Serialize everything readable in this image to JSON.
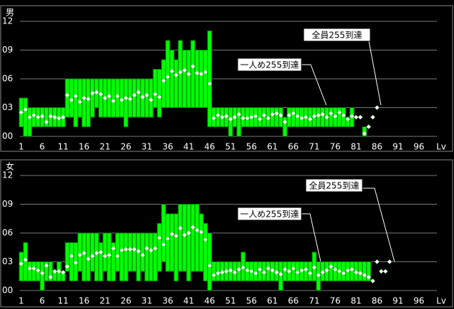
{
  "chart_data": [
    {
      "type": "range_bar",
      "title": "男",
      "xlabel": "Lv",
      "color": "#00ff00",
      "edge_color": "#008000",
      "marker_color": "#ffffff",
      "grid": true,
      "annotations": [
        "一人め255到達",
        "全員255到達"
      ],
      "x": [
        1,
        2,
        3,
        4,
        5,
        6,
        7,
        8,
        9,
        10,
        11,
        12,
        13,
        14,
        15,
        16,
        17,
        18,
        19,
        20,
        21,
        22,
        23,
        24,
        25,
        26,
        27,
        28,
        29,
        30,
        31,
        32,
        33,
        34,
        35,
        36,
        37,
        38,
        39,
        40,
        41,
        42,
        43,
        44,
        45,
        46,
        47,
        48,
        49,
        50,
        51,
        52,
        53,
        54,
        55,
        56,
        57,
        58,
        59,
        60,
        61,
        62,
        63,
        64,
        65,
        66,
        67,
        68,
        69,
        70,
        71,
        72,
        73,
        74,
        75,
        76,
        77,
        78,
        79,
        80,
        81,
        82,
        83,
        84,
        85,
        86
      ],
      "max": [
        4,
        4,
        3,
        3,
        3,
        3,
        3,
        3,
        3,
        3,
        3,
        6,
        6,
        6,
        6,
        6,
        6,
        6,
        6,
        6,
        6,
        6,
        6,
        6,
        6,
        6,
        6,
        6,
        6,
        6,
        6,
        6,
        7,
        7,
        8,
        10,
        9,
        8,
        10,
        9,
        9,
        10,
        9,
        9,
        9,
        11,
        3,
        3,
        3,
        3,
        3,
        3,
        3,
        3,
        3,
        3,
        3,
        3,
        3,
        3,
        3,
        3,
        3,
        2,
        3,
        3,
        3,
        3,
        3,
        3,
        3,
        3,
        3,
        3,
        3,
        3,
        3,
        3,
        2,
        3,
        2,
        2,
        1,
        1,
        2,
        3
      ],
      "min": [
        1,
        0,
        0,
        1,
        1,
        1,
        1,
        1,
        1,
        1,
        1,
        2,
        2,
        1,
        2,
        1,
        1,
        2,
        3,
        2,
        2,
        2,
        2,
        2,
        2,
        1,
        2,
        2,
        2,
        2,
        2,
        2,
        3,
        2,
        3,
        3,
        3,
        3,
        3,
        3,
        3,
        3,
        3,
        3,
        3,
        1,
        1,
        1,
        1,
        1,
        0,
        1,
        0,
        1,
        1,
        1,
        1,
        1,
        1,
        1,
        1,
        1,
        1,
        0,
        1,
        1,
        1,
        1,
        1,
        1,
        1,
        1,
        1,
        1,
        1,
        1,
        1,
        1,
        1,
        1,
        2,
        2,
        0,
        1,
        2,
        3
      ],
      "avg": [
        2.5,
        2.8,
        2,
        2.2,
        2,
        2.1,
        1.5,
        2.1,
        2,
        1.9,
        2,
        4.3,
        3.8,
        4.2,
        3.6,
        4,
        3.9,
        4.5,
        4.6,
        4.4,
        4,
        4.2,
        3.7,
        4.2,
        3.8,
        4,
        3.9,
        4.3,
        4.6,
        4.1,
        4.3,
        3.8,
        4.4,
        4.1,
        5.8,
        6.2,
        6.8,
        6.4,
        6.7,
        6.9,
        6.5,
        7.3,
        6.6,
        6.5,
        6.7,
        5.5,
        1.9,
        2.2,
        2,
        2.1,
        1.8,
        2,
        2.3,
        1.9,
        1.9,
        2,
        2.1,
        1.8,
        2.2,
        1.9,
        2.3,
        2.4,
        2.2,
        1.5,
        2.2,
        2.4,
        2.1,
        1.9,
        2,
        1.8,
        2.1,
        2.2,
        2.3,
        2,
        2.4,
        2.1,
        2.5,
        2.2,
        1.8,
        2.1,
        2,
        2,
        0.3,
        1,
        2,
        3
      ],
      "ylim": [
        0,
        12
      ],
      "yticks": [
        {
          "value": 0,
          "label": "00"
        },
        {
          "value": 3,
          "label": "03"
        },
        {
          "value": 6,
          "label": "06"
        },
        {
          "value": 9,
          "label": "09"
        },
        {
          "value": 12,
          "label": "12"
        }
      ],
      "xlim": [
        1,
        100
      ],
      "xticks": [
        1,
        6,
        11,
        16,
        21,
        26,
        31,
        36,
        41,
        46,
        51,
        56,
        61,
        66,
        71,
        76,
        81,
        86,
        91,
        96
      ]
    },
    {
      "type": "range_bar",
      "title": "女",
      "xlabel": "Lv",
      "color": "#00ff00",
      "edge_color": "#008000",
      "marker_color": "#ffffff",
      "grid": true,
      "annotations": [
        "一人め255到達",
        "全員255到達"
      ],
      "x": [
        1,
        2,
        3,
        4,
        5,
        6,
        7,
        8,
        9,
        10,
        11,
        12,
        13,
        14,
        15,
        16,
        17,
        18,
        19,
        20,
        21,
        22,
        23,
        24,
        25,
        26,
        27,
        28,
        29,
        30,
        31,
        32,
        33,
        34,
        35,
        36,
        37,
        38,
        39,
        40,
        41,
        42,
        43,
        44,
        45,
        46,
        47,
        48,
        49,
        50,
        51,
        52,
        53,
        54,
        55,
        56,
        57,
        58,
        59,
        60,
        61,
        62,
        63,
        64,
        65,
        66,
        67,
        68,
        69,
        70,
        71,
        72,
        73,
        74,
        75,
        76,
        77,
        78,
        79,
        80,
        81,
        82,
        83,
        84,
        85,
        86,
        87,
        88,
        89
      ],
      "max": [
        4,
        5,
        3,
        3,
        3,
        3,
        3,
        3,
        2,
        3,
        2,
        5,
        5,
        5,
        6,
        6,
        6,
        6,
        6,
        5,
        6,
        6,
        5,
        6,
        6,
        6,
        6,
        6,
        6,
        6,
        6,
        6,
        6,
        7,
        9,
        8,
        8,
        8,
        9,
        9,
        9,
        9,
        9,
        8,
        7,
        6,
        3,
        3,
        3,
        3,
        3,
        3,
        3,
        4,
        3,
        3,
        3,
        3,
        3,
        3,
        3,
        3,
        3,
        3,
        3,
        3,
        3,
        3,
        3,
        3,
        4,
        3,
        3,
        3,
        3,
        3,
        3,
        3,
        3,
        3,
        3,
        3,
        3,
        3,
        1,
        3,
        2,
        2,
        3
      ],
      "min": [
        1,
        1,
        1,
        1,
        1,
        0,
        1,
        1,
        1,
        1,
        1,
        2,
        1,
        1,
        2,
        1,
        1,
        2,
        1,
        1,
        2,
        1,
        1,
        2,
        1,
        1,
        2,
        2,
        1,
        2,
        1,
        1,
        1,
        2,
        3,
        2,
        2,
        1,
        2,
        2,
        1,
        2,
        2,
        2,
        1,
        0,
        1,
        1,
        1,
        1,
        1,
        1,
        1,
        1,
        1,
        1,
        1,
        1,
        1,
        1,
        1,
        1,
        0,
        1,
        1,
        1,
        1,
        1,
        1,
        1,
        1,
        0,
        1,
        1,
        1,
        1,
        1,
        1,
        1,
        1,
        1,
        1,
        1,
        1,
        1,
        3,
        2,
        2,
        3
      ],
      "avg": [
        2.8,
        3.2,
        2.3,
        2.3,
        2.1,
        1.8,
        2.6,
        1.4,
        2,
        2,
        1.9,
        2.5,
        3.6,
        2.9,
        3.7,
        3.9,
        3.3,
        3.6,
        3.9,
        4,
        3.6,
        3.7,
        4.4,
        3.6,
        4.2,
        4.3,
        4.3,
        4.3,
        4.1,
        3.7,
        4.4,
        4.2,
        4.4,
        5.5,
        4.8,
        5.4,
        5.9,
        5.7,
        6.5,
        5.8,
        6,
        6.6,
        6.3,
        6.1,
        5.3,
        2.6,
        1.6,
        1.8,
        1.9,
        2,
        2.1,
        1.9,
        2.2,
        2.4,
        2.1,
        2,
        1.8,
        2.2,
        1.9,
        2.3,
        2.1,
        1.9,
        1.7,
        2.2,
        2,
        2.3,
        1.9,
        2.1,
        2.2,
        1.8,
        2.4,
        1.6,
        1.9,
        2.1,
        2.5,
        2.2,
        2,
        1.8,
        2.1,
        2.2,
        1.9,
        1.8,
        1.6,
        1.4,
        1,
        3,
        2,
        2,
        3
      ],
      "ylim": [
        0,
        12
      ],
      "yticks": [
        {
          "value": 0,
          "label": "00"
        },
        {
          "value": 3,
          "label": "03"
        },
        {
          "value": 6,
          "label": "06"
        },
        {
          "value": 9,
          "label": "09"
        },
        {
          "value": 12,
          "label": "12"
        }
      ],
      "xlim": [
        1,
        100
      ],
      "xticks": [
        1,
        6,
        11,
        16,
        21,
        26,
        31,
        36,
        41,
        46,
        51,
        56,
        61,
        66,
        71,
        76,
        81,
        86,
        91,
        96
      ]
    }
  ]
}
